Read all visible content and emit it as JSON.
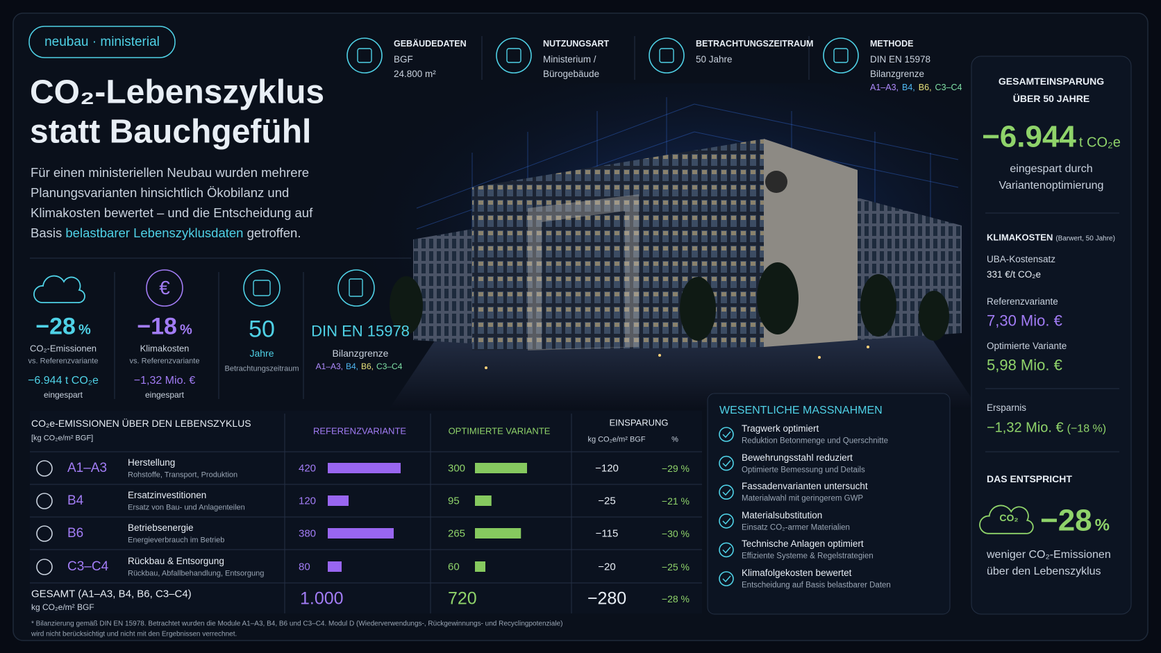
{
  "tag": "neubau · ministerial",
  "title": {
    "line1": "CO₂-Lebenszyklus",
    "line2": "statt Bauchgefühl"
  },
  "intro": {
    "before": "Für einen ministeriellen Neubau wurden mehrere Planungsvarianten hinsichtlich Ökobilanz und Klimakosten bewertet – und die Entscheidung auf Basis ",
    "highlight": "belastbarer Lebenszyklusdaten",
    "after": " getroffen."
  },
  "info": [
    {
      "label": "GEBÄUDEDATEN",
      "lines": [
        "BGF",
        "24.800 m²"
      ]
    },
    {
      "label": "NUTZUNGSART",
      "lines": [
        "Ministerium /",
        "Bürogebäude"
      ]
    },
    {
      "label": "BETRACHTUNGSZEITRAUM",
      "lines": [
        "50 Jahre"
      ]
    },
    {
      "label": "METHODE",
      "lines": [
        "DIN EN 15978",
        "Bilanzgrenze"
      ],
      "modules": [
        "A1–A3,",
        "B4,",
        "B6,",
        "C3–C4"
      ]
    }
  ],
  "kpis": [
    {
      "value": "−28",
      "unit": "%",
      "label": "CO₂-Emissionen",
      "sub": "vs. Referenzvariante",
      "saving": "−6.944 t CO₂e",
      "saving_label": "eingespart"
    },
    {
      "value": "−18",
      "unit": "%",
      "label": "Klimakosten",
      "sub": "vs. Referenzvariante",
      "saving": "−1,32 Mio. €",
      "saving_label": "eingespart"
    },
    {
      "value": "50",
      "label": "Jahre",
      "sub": "Betrachtungszeitraum"
    },
    {
      "value": "DIN EN 15978",
      "label": "Bilanzgrenze",
      "modules": [
        "A1–A3,",
        "B4,",
        "B6,",
        "C3–C4"
      ]
    }
  ],
  "table": {
    "title": "CO₂e-EMISSIONEN ÜBER DEN LEBENSZYKLUS",
    "unit": "[kg CO₂e/m² BGF]",
    "headers": {
      "ref": "REFERENZVARIANTE",
      "opt": "OPTIMIERTE VARIANTE",
      "saving": "EINSPARUNG",
      "saving_abs": "kg CO₂e/m² BGF",
      "saving_pct": "%"
    },
    "rows": [
      {
        "module": "A1–A3",
        "name": "Herstellung",
        "desc": "Rohstoffe, Transport, Produktion",
        "ref": 420,
        "opt": 300,
        "saving": "−120",
        "pct": "−29 %"
      },
      {
        "module": "B4",
        "name": "Ersatzinvestitionen",
        "desc": "Ersatz von Bau- und Anlagenteilen",
        "ref": 120,
        "opt": 95,
        "saving": "−25",
        "pct": "−21 %"
      },
      {
        "module": "B6",
        "name": "Betriebsenergie",
        "desc": "Energieverbrauch im Betrieb",
        "ref": 380,
        "opt": 265,
        "saving": "−115",
        "pct": "−30 %"
      },
      {
        "module": "C3–C4",
        "name": "Rückbau & Entsorgung",
        "desc": "Rückbau, Abfallbehandlung, Entsorgung",
        "ref": 80,
        "opt": 60,
        "saving": "−20",
        "pct": "−25 %"
      }
    ],
    "total": {
      "label": "GESAMT (A1–A3, B4, B6, C3–C4)",
      "unit": "kg CO₂e/m² BGF",
      "ref": "1.000",
      "opt": "720",
      "saving": "−280",
      "pct": "−28 %"
    }
  },
  "measures": {
    "title": "WESENTLICHE MASSNAHMEN",
    "items": [
      {
        "title": "Tragwerk optimiert",
        "desc": "Reduktion Betonmenge und Querschnitte"
      },
      {
        "title": "Bewehrungsstahl reduziert",
        "desc": "Optimierte Bemessung und Details"
      },
      {
        "title": "Fassadenvarianten untersucht",
        "desc": "Materialwahl mit geringerem GWP"
      },
      {
        "title": "Materialsubstitution",
        "desc": "Einsatz CO₂-armer Materialien"
      },
      {
        "title": "Technische Anlagen optimiert",
        "desc": "Effiziente Systeme & Regelstrategien"
      },
      {
        "title": "Klimafolgekosten bewertet",
        "desc": "Entscheidung auf Basis belastbarer Daten"
      }
    ]
  },
  "summary": {
    "title": [
      "GESAMTEINSPARUNG",
      "ÜBER 50 JAHRE"
    ],
    "value": "−6.944",
    "unit": "t CO₂e",
    "desc": "eingespart durch Variantenoptimierung",
    "costs_title": "KLIMAKOSTEN",
    "costs_note": "(Barwert, 50 Jahre)",
    "rate_label": "UBA-Kostensatz",
    "rate": "331 €/t CO₂e",
    "ref_label": "Referenzvariante",
    "ref": "7,30 Mio. €",
    "opt_label": "Optimierte Variante",
    "opt": "5,98 Mio. €",
    "saving_label": "Ersparnis",
    "saving": "−1,32 Mio. €",
    "saving_pct": "(−18 %)",
    "equiv_title": "DAS ENTSPRICHT",
    "icon_label": "CO₂",
    "equiv_value": "−28",
    "equiv_unit": "%",
    "equiv_desc": "weniger CO₂-Emissionen über den Lebenszyklus"
  },
  "footnote": [
    "*  Bilanzierung gemäß DIN EN 15978. Betrachtet wurden die Module A1–A3, B4, B6 und C3–C4. Modul D (Wiederverwendungs-, Rückgewinnungs- und Recyclingpotenziale)",
    "wird nicht berücksichtigt und nicht mit den Ergebnissen verrechnet."
  ]
}
